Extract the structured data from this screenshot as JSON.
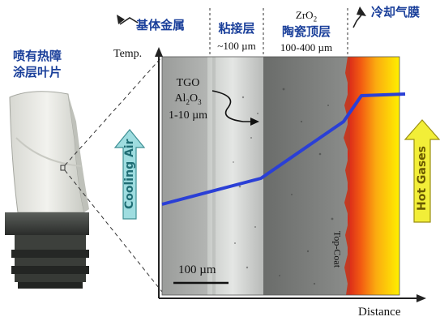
{
  "blade": {
    "caption_line1": "喷有热障",
    "caption_line2": "涂层叶片"
  },
  "layers": {
    "substrate": "基体金属",
    "bond_coat": "粘接层",
    "bond_thickness": "~100 µm",
    "topcoat_formula": "ZrO",
    "topcoat_formula_sub": "2",
    "topcoat": "陶瓷顶层",
    "topcoat_thickness": "100-400 µm",
    "cooling_film": "冷却气膜"
  },
  "tgo": {
    "name": "TGO",
    "oxide": "Al",
    "oxide_sub1": "2",
    "oxide_mid": "O",
    "oxide_sub2": "3",
    "thickness": "1-10 µm"
  },
  "axes": {
    "y_label": "Temp.",
    "x_label": "Distance"
  },
  "arrows": {
    "left": "Cooling Air",
    "right": "Hot Gases"
  },
  "scale_bar": "100 µm",
  "topcoat_label": "Top-Coat",
  "colors": {
    "curve": "#2a3fd6",
    "cooling_arrow": "#9fdde0",
    "hot_arrow": "#f2ee38",
    "text_blue": "#1a3f9a"
  }
}
